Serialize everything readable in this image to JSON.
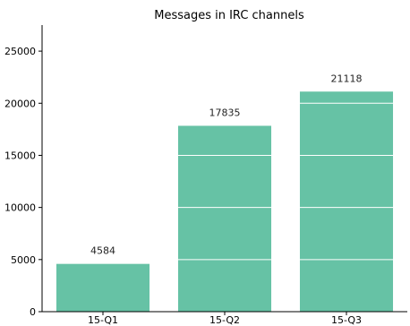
{
  "chart_data": {
    "type": "bar",
    "title": "Messages in IRC channels",
    "xlabel": "",
    "ylabel": "",
    "categories": [
      "15-Q1",
      "15-Q2",
      "15-Q3"
    ],
    "values": [
      4584,
      17835,
      21118
    ],
    "data_labels": [
      "4584",
      "17835",
      "21118"
    ],
    "ylim": [
      0,
      27500
    ],
    "yticks": [
      0,
      5000,
      10000,
      15000,
      20000,
      25000
    ],
    "ytick_labels": [
      "0",
      "5000",
      "10000",
      "15000",
      "20000",
      "25000"
    ],
    "grid": "horizontal lines drawn over bars only",
    "legend": "none",
    "colors": {
      "bar": "#66c2a5",
      "grid_on_bar": "#ffffff",
      "axis": "#000000"
    }
  }
}
